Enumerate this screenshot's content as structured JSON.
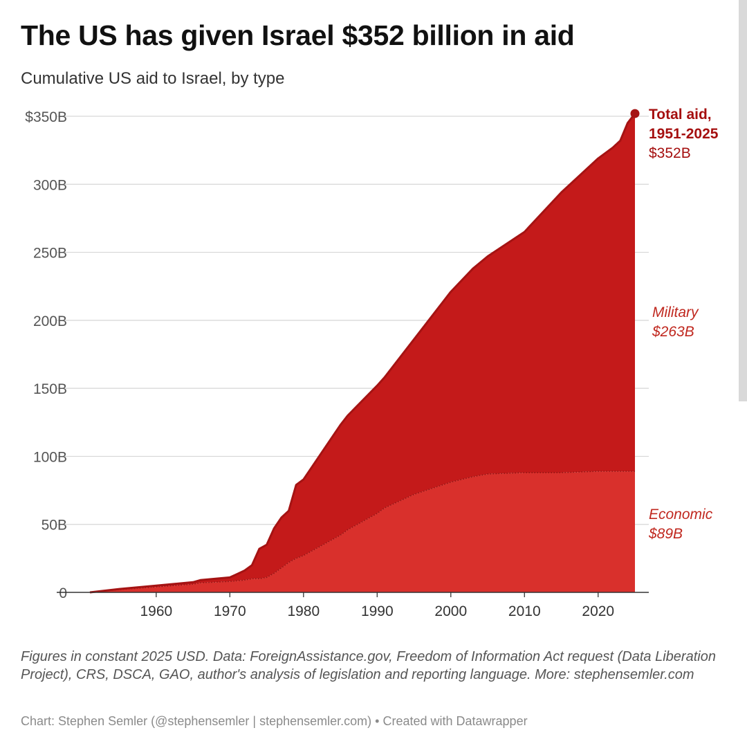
{
  "title": "The US has given Israel $352 billion in aid",
  "subtitle": "Cumulative US aid to Israel, by type",
  "notes": "Figures in constant 2025 USD. Data: ForeignAssistance.gov, Freedom of Information Act request (Data Liberation Project), CRS, DSCA, GAO, author's analysis of legislation and reporting language. More: stephensemler.com",
  "credit": "Chart: Stephen Semler (@stephensemler | stephensemler.com) • Created with Datawrapper",
  "colors": {
    "military": "#c41a1a",
    "economic": "#d9302c",
    "total_line": "#a51313",
    "label_dark": "#a50f0f",
    "label_italic": "#c0281f",
    "grid": "#d6d6d6",
    "tick_text": "#555555"
  },
  "chart_data": {
    "type": "area",
    "stacked": true,
    "x_ticks": [
      1960,
      1970,
      1980,
      1990,
      2000,
      2010,
      2020
    ],
    "y_ticks": [
      0,
      50,
      100,
      150,
      200,
      250,
      300,
      350
    ],
    "y_tick_labels": [
      "0",
      "50B",
      "100B",
      "150B",
      "200B",
      "250B",
      "300B",
      "$350B"
    ],
    "xlim": [
      1951,
      2025
    ],
    "ylim": [
      0,
      350
    ],
    "grid": "horizontal",
    "x": [
      1951,
      1955,
      1960,
      1965,
      1966,
      1970,
      1971,
      1972,
      1973,
      1974,
      1975,
      1976,
      1977,
      1978,
      1979,
      1980,
      1985,
      1986,
      1990,
      1991,
      1995,
      2000,
      2003,
      2005,
      2010,
      2015,
      2020,
      2022,
      2023,
      2024,
      2025
    ],
    "series": [
      {
        "key": "economic",
        "values": [
          0,
          2,
          4,
          6,
          7,
          8,
          8.5,
          9,
          10,
          10,
          11,
          14,
          18,
          22,
          25,
          27,
          42,
          46,
          58,
          62,
          72,
          81,
          85,
          87,
          88,
          88,
          89,
          89,
          89,
          89,
          89
        ]
      },
      {
        "key": "military",
        "values": [
          0,
          0.5,
          1,
          1.5,
          2,
          3,
          5,
          7,
          10,
          22,
          24,
          33,
          37,
          38,
          54,
          56,
          81,
          84,
          94,
          96,
          114,
          140,
          153,
          160,
          177,
          206,
          230,
          238,
          243,
          256,
          263
        ]
      }
    ],
    "total": 352,
    "annotations": {
      "total": {
        "line1": "Total aid,",
        "line2": "1951-2025",
        "value": "$352B"
      },
      "military": {
        "name": "Military",
        "value": "$263B"
      },
      "economic": {
        "name": "Economic",
        "value": "$89B"
      }
    }
  }
}
